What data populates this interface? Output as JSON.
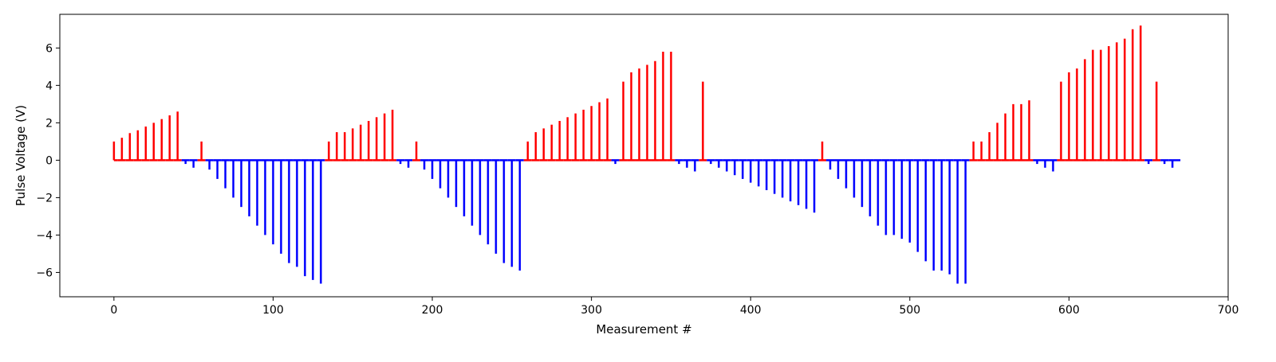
{
  "chart_data": {
    "type": "bar",
    "subtype": "stem",
    "title": "",
    "xlabel": "Measurement #",
    "ylabel": "Pulse Voltage (V)",
    "xlim": [
      -34,
      700
    ],
    "ylim": [
      -7.3,
      7.8
    ],
    "xticks": [
      0,
      100,
      200,
      300,
      400,
      500,
      600,
      700
    ],
    "yticks": [
      -6,
      -4,
      -2,
      0,
      2,
      4,
      6
    ],
    "grid": false,
    "legend": false,
    "colors": {
      "positive": "#ff0000",
      "negative": "#0000ff",
      "axis": "#000000"
    },
    "x": [
      0,
      5,
      10,
      15,
      20,
      25,
      30,
      35,
      40,
      45,
      50,
      55,
      60,
      65,
      70,
      75,
      80,
      85,
      90,
      95,
      100,
      105,
      110,
      115,
      120,
      125,
      130,
      135,
      140,
      145,
      150,
      155,
      160,
      165,
      170,
      175,
      180,
      185,
      190,
      195,
      200,
      205,
      210,
      215,
      220,
      225,
      230,
      235,
      240,
      245,
      250,
      255,
      260,
      265,
      270,
      275,
      280,
      285,
      290,
      295,
      300,
      305,
      310,
      315,
      320,
      325,
      330,
      335,
      340,
      345,
      350,
      355,
      360,
      365,
      370,
      375,
      380,
      385,
      390,
      395,
      400,
      405,
      410,
      415,
      420,
      425,
      430,
      435,
      440,
      445,
      450,
      455,
      460,
      465,
      470,
      475,
      480,
      485,
      490,
      495,
      500,
      505,
      510,
      515,
      520,
      525,
      530,
      535,
      540,
      545,
      550,
      555,
      560,
      565,
      570,
      575,
      580,
      585,
      590,
      595,
      600,
      605,
      610,
      615,
      620,
      625,
      630,
      635,
      640,
      645,
      650,
      655,
      660,
      665
    ],
    "values": [
      1.0,
      1.2,
      1.45,
      1.6,
      1.8,
      2.0,
      2.2,
      2.4,
      2.6,
      -0.2,
      -0.4,
      1.0,
      -0.5,
      -1.0,
      -1.5,
      -2.0,
      -2.5,
      -3.0,
      -3.5,
      -4.0,
      -4.5,
      -5.0,
      -5.5,
      -5.7,
      -6.2,
      -6.4,
      -6.6,
      1.0,
      1.5,
      1.5,
      1.7,
      1.9,
      2.1,
      2.3,
      2.5,
      2.7,
      -0.2,
      -0.4,
      1.0,
      -0.5,
      -1.0,
      -1.5,
      -2.0,
      -2.5,
      -3.0,
      -3.5,
      -4.0,
      -4.5,
      -5.0,
      -5.5,
      -5.7,
      -5.9,
      1.0,
      1.5,
      1.7,
      1.9,
      2.1,
      2.3,
      2.5,
      2.7,
      2.9,
      3.1,
      3.3,
      -0.2,
      4.2,
      4.7,
      4.9,
      5.1,
      5.3,
      5.8,
      5.8,
      -0.2,
      -0.4,
      -0.6,
      4.2,
      -0.2,
      -0.4,
      -0.6,
      -0.8,
      -1.0,
      -1.2,
      -1.4,
      -1.6,
      -1.8,
      -2.0,
      -2.2,
      -2.4,
      -2.6,
      -2.8,
      1.0,
      -0.5,
      -1.0,
      -1.5,
      -2.0,
      -2.5,
      -3.0,
      -3.5,
      -4.0,
      -4.0,
      -4.2,
      -4.4,
      -4.9,
      -5.4,
      -5.9,
      -5.9,
      -6.1,
      -6.6,
      -6.6,
      1.0,
      1.0,
      1.5,
      2.0,
      2.5,
      3.0,
      3.0,
      3.2,
      -0.2,
      -0.4,
      -0.6,
      4.2,
      4.7,
      4.9,
      5.4,
      5.9,
      5.9,
      6.1,
      6.3,
      6.5,
      7.0,
      7.2,
      -0.2,
      4.2,
      -0.2,
      -0.4
    ],
    "baseline": {
      "value": 0,
      "x_range": [
        0,
        670
      ]
    }
  }
}
